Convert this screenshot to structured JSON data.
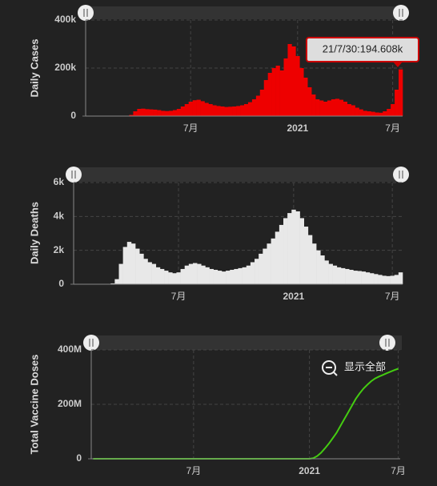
{
  "chart_data": [
    {
      "type": "bar",
      "y_label": "Daily Cases",
      "color": "#ee0000",
      "tooltip": "21/7/30:194.608k",
      "categories": [
        null,
        null,
        null,
        null,
        null,
        null,
        null,
        null,
        null,
        null,
        null,
        null,
        null,
        null,
        null,
        null,
        null,
        null,
        null,
        null,
        null,
        null,
        null,
        null,
        null,
        null,
        "7月",
        null,
        null,
        null,
        null,
        null,
        null,
        null,
        null,
        null,
        null,
        null,
        null,
        null,
        null,
        null,
        null,
        null,
        null,
        null,
        null,
        null,
        null,
        null,
        null,
        null,
        null,
        "2021",
        null,
        null,
        null,
        null,
        null,
        null,
        null,
        null,
        null,
        null,
        null,
        null,
        null,
        null,
        null,
        null,
        null,
        null,
        null,
        null,
        null,
        null,
        null,
        "7月",
        null,
        null
      ],
      "values": [
        0,
        0,
        0,
        0,
        0,
        0,
        0,
        0,
        0,
        0,
        500,
        5000,
        20000,
        30000,
        31000,
        29000,
        28000,
        27000,
        25000,
        22000,
        21000,
        22000,
        25000,
        30000,
        40000,
        50000,
        60000,
        66000,
        68000,
        62000,
        55000,
        50000,
        45000,
        42000,
        40000,
        38000,
        39000,
        40000,
        42000,
        45000,
        50000,
        58000,
        70000,
        85000,
        110000,
        150000,
        180000,
        200000,
        210000,
        190000,
        240000,
        300000,
        290000,
        250000,
        200000,
        160000,
        120000,
        90000,
        70000,
        65000,
        60000,
        65000,
        70000,
        72000,
        68000,
        60000,
        50000,
        45000,
        35000,
        28000,
        22000,
        20000,
        18000,
        15000,
        14000,
        20000,
        30000,
        50000,
        110000,
        194608
      ],
      "ylim": [
        0,
        400000
      ],
      "yticks": [
        {
          "value": 0,
          "label": "0"
        },
        {
          "value": 200000,
          "label": "200k"
        },
        {
          "value": 400000,
          "label": "400k"
        }
      ],
      "grid": true
    },
    {
      "type": "bar",
      "y_label": "Daily Deaths",
      "color": "#e8e8e8",
      "categories": [
        null,
        null,
        null,
        null,
        null,
        null,
        null,
        null,
        null,
        null,
        null,
        null,
        null,
        null,
        null,
        null,
        null,
        null,
        null,
        null,
        null,
        null,
        null,
        null,
        null,
        "7月",
        null,
        null,
        null,
        null,
        null,
        null,
        null,
        null,
        null,
        null,
        null,
        null,
        null,
        null,
        null,
        null,
        null,
        null,
        null,
        null,
        null,
        null,
        null,
        null,
        null,
        null,
        null,
        "2021",
        null,
        null,
        null,
        null,
        null,
        null,
        null,
        null,
        null,
        null,
        null,
        null,
        null,
        null,
        null,
        null,
        null,
        null,
        null,
        null,
        null,
        null,
        null,
        "7月",
        null,
        null
      ],
      "values": [
        0,
        0,
        0,
        0,
        0,
        0,
        0,
        0,
        0,
        50,
        300,
        1200,
        2200,
        2500,
        2400,
        2100,
        1800,
        1500,
        1300,
        1200,
        1000,
        900,
        800,
        700,
        650,
        700,
        900,
        1100,
        1200,
        1250,
        1200,
        1100,
        1000,
        900,
        850,
        800,
        750,
        800,
        850,
        900,
        950,
        1000,
        1100,
        1300,
        1500,
        1800,
        2100,
        2400,
        2700,
        3100,
        3500,
        3900,
        4200,
        4400,
        4300,
        3900,
        3400,
        2900,
        2400,
        2000,
        1700,
        1400,
        1200,
        1100,
        1000,
        950,
        900,
        850,
        800,
        780,
        750,
        700,
        650,
        600,
        550,
        500,
        480,
        500,
        550,
        700
      ],
      "ylim": [
        0,
        6000
      ],
      "yticks": [
        {
          "value": 0,
          "label": "0"
        },
        {
          "value": 2000,
          "label": "2k"
        },
        {
          "value": 4000,
          "label": "4k"
        },
        {
          "value": 6000,
          "label": "6k"
        }
      ],
      "grid": true
    },
    {
      "type": "line",
      "y_label": "Total Vaccine Doses",
      "color": "#44cc11",
      "reset_label": "显示全部",
      "categories": [
        null,
        null,
        null,
        null,
        null,
        null,
        null,
        null,
        null,
        null,
        null,
        null,
        null,
        null,
        null,
        null,
        null,
        null,
        null,
        null,
        null,
        null,
        null,
        null,
        null,
        null,
        "7月",
        null,
        null,
        null,
        null,
        null,
        null,
        null,
        null,
        null,
        null,
        null,
        null,
        null,
        null,
        null,
        null,
        null,
        null,
        null,
        null,
        null,
        null,
        null,
        null,
        null,
        null,
        null,
        null,
        null,
        "2021",
        null,
        null,
        null,
        null,
        null,
        null,
        null,
        null,
        null,
        null,
        null,
        null,
        null,
        null,
        null,
        null,
        null,
        null,
        null,
        null,
        null,
        null,
        "7月"
      ],
      "values": [
        0,
        0,
        0,
        0,
        0,
        0,
        0,
        0,
        0,
        0,
        0,
        0,
        0,
        0,
        0,
        0,
        0,
        0,
        0,
        0,
        0,
        0,
        0,
        0,
        0,
        0,
        0,
        0,
        0,
        0,
        0,
        0,
        0,
        0,
        0,
        0,
        0,
        0,
        0,
        0,
        0,
        0,
        0,
        0,
        0,
        0,
        0,
        0,
        0,
        0,
        0,
        0,
        0,
        0,
        0,
        0,
        0,
        2000000,
        10000000,
        22000000,
        38000000,
        55000000,
        75000000,
        95000000,
        120000000,
        145000000,
        170000000,
        195000000,
        220000000,
        240000000,
        258000000,
        272000000,
        285000000,
        295000000,
        302000000,
        308000000,
        314000000,
        320000000,
        326000000,
        331000000
      ],
      "ylim": [
        0,
        400000000
      ],
      "yticks": [
        {
          "value": 0,
          "label": "0"
        },
        {
          "value": 200000000,
          "label": "200M"
        },
        {
          "value": 400000000,
          "label": "400M"
        }
      ],
      "grid": true
    }
  ]
}
